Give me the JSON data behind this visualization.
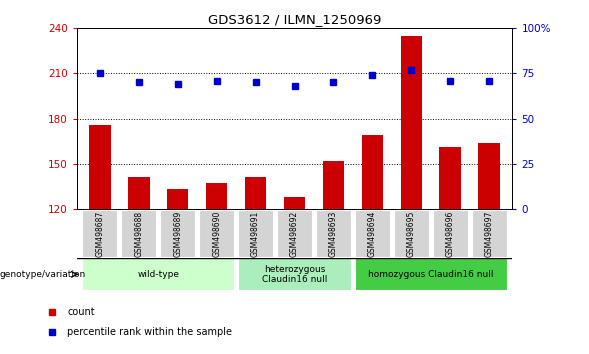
{
  "title": "GDS3612 / ILMN_1250969",
  "samples": [
    "GSM498687",
    "GSM498688",
    "GSM498689",
    "GSM498690",
    "GSM498691",
    "GSM498692",
    "GSM498693",
    "GSM498694",
    "GSM498695",
    "GSM498696",
    "GSM498697"
  ],
  "bar_values": [
    176,
    141,
    133,
    137,
    141,
    128,
    152,
    169,
    235,
    161,
    164
  ],
  "percentile_values": [
    75,
    70,
    69,
    71,
    70,
    68,
    70,
    74,
    77,
    71,
    71
  ],
  "bar_color": "#cc0000",
  "percentile_color": "#0000cc",
  "ylim_left": [
    120,
    240
  ],
  "ylim_right": [
    0,
    100
  ],
  "yticks_left": [
    120,
    150,
    180,
    210,
    240
  ],
  "yticks_right": [
    0,
    25,
    50,
    75,
    100
  ],
  "hlines": [
    150,
    180,
    210
  ],
  "groups": [
    {
      "label": "wild-type",
      "start": 0,
      "end": 3,
      "color": "#ccffcc"
    },
    {
      "label": "heterozygous\nClaudin16 null",
      "start": 4,
      "end": 6,
      "color": "#aaeebb"
    },
    {
      "label": "homozygous Claudin16 null",
      "start": 7,
      "end": 10,
      "color": "#44cc44"
    }
  ],
  "legend_count_label": "count",
  "legend_percentile_label": "percentile rank within the sample",
  "genotype_label": "genotype/variation",
  "sample_box_color": "#d4d4d4",
  "plot_bg": "white"
}
